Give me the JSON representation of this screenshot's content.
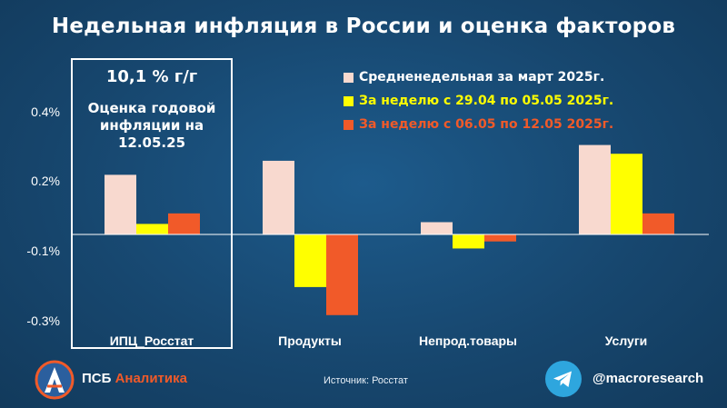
{
  "title": "Недельная инфляция в России и оценка факторов",
  "highlight": {
    "main": "10,1 % г/г",
    "sub": "Оценка годовой инфляции на 12.05.25"
  },
  "footer": {
    "brand_prefix": "ПСБ ",
    "brand_accent": "Аналитика",
    "source": "Источник: Росстат",
    "handle": "@macroresearch",
    "logo_letter": "А"
  },
  "colors": {
    "series_march": "#f8d9cf",
    "series_week1": "#ffff00",
    "series_week2": "#f15a29"
  },
  "chart_data": {
    "type": "bar",
    "categories": [
      "ИПЦ_Росстат",
      "Продукты",
      "Непрод.товары",
      "Услуги"
    ],
    "series": [
      {
        "name": "Средненедельная за март 2025г.",
        "color": "#f8d9cf",
        "values": [
          0.17,
          0.21,
          0.035,
          0.255
        ]
      },
      {
        "name": "За неделю с 29.04 по 05.05 2025г.",
        "color": "#ffff00",
        "values": [
          0.03,
          -0.15,
          -0.04,
          0.23
        ]
      },
      {
        "name": "За неделю с 06.05 по 12.05 2025г.",
        "color": "#f15a29",
        "values": [
          0.06,
          -0.23,
          -0.02,
          0.06
        ]
      }
    ],
    "yticks": [
      "0.4%",
      "0.2%",
      "-0.1%",
      "-0.3%"
    ],
    "ylim": [
      -0.3,
      0.4
    ],
    "legend_position": "top-right",
    "grid": false
  }
}
